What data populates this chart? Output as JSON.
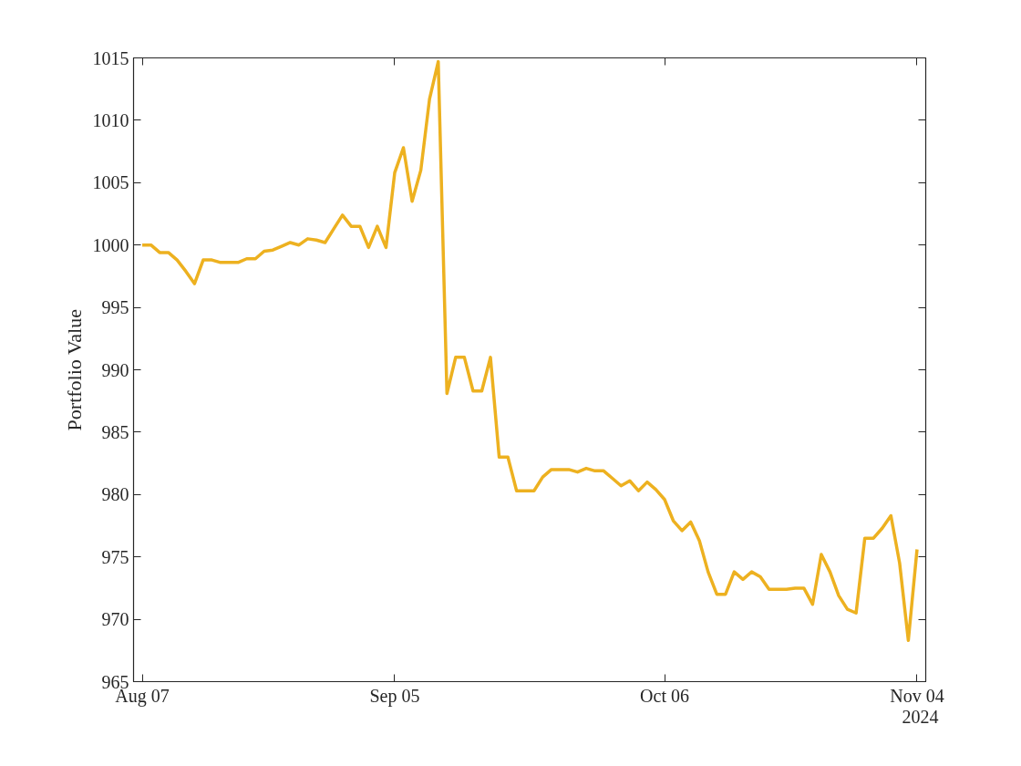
{
  "chart_data": {
    "type": "line",
    "ylabel": "Portfolio Value",
    "x": [
      "2024-08-07",
      "2024-08-08",
      "2024-08-09",
      "2024-08-10",
      "2024-08-11",
      "2024-08-12",
      "2024-08-13",
      "2024-08-14",
      "2024-08-15",
      "2024-08-16",
      "2024-08-17",
      "2024-08-18",
      "2024-08-19",
      "2024-08-20",
      "2024-08-21",
      "2024-08-22",
      "2024-08-23",
      "2024-08-24",
      "2024-08-25",
      "2024-08-26",
      "2024-08-27",
      "2024-08-28",
      "2024-08-29",
      "2024-08-30",
      "2024-08-31",
      "2024-09-01",
      "2024-09-02",
      "2024-09-03",
      "2024-09-04",
      "2024-09-05",
      "2024-09-06",
      "2024-09-07",
      "2024-09-08",
      "2024-09-09",
      "2024-09-10",
      "2024-09-11",
      "2024-09-12",
      "2024-09-13",
      "2024-09-14",
      "2024-09-15",
      "2024-09-16",
      "2024-09-17",
      "2024-09-18",
      "2024-09-19",
      "2024-09-20",
      "2024-09-21",
      "2024-09-22",
      "2024-09-23",
      "2024-09-24",
      "2024-09-25",
      "2024-09-26",
      "2024-09-27",
      "2024-09-28",
      "2024-09-29",
      "2024-09-30",
      "2024-10-01",
      "2024-10-02",
      "2024-10-03",
      "2024-10-04",
      "2024-10-05",
      "2024-10-06",
      "2024-10-07",
      "2024-10-08",
      "2024-10-09",
      "2024-10-10",
      "2024-10-11",
      "2024-10-12",
      "2024-10-13",
      "2024-10-14",
      "2024-10-15",
      "2024-10-16",
      "2024-10-17",
      "2024-10-18",
      "2024-10-19",
      "2024-10-20",
      "2024-10-21",
      "2024-10-22",
      "2024-10-23",
      "2024-10-24",
      "2024-10-25",
      "2024-10-26",
      "2024-10-27",
      "2024-10-28",
      "2024-10-29",
      "2024-10-30",
      "2024-10-31",
      "2024-11-01",
      "2024-11-02",
      "2024-11-03",
      "2024-11-04"
    ],
    "series": [
      {
        "color": "#edb120",
        "values": [
          1000.0,
          1000.0,
          999.4,
          999.4,
          998.8,
          997.9,
          996.9,
          998.8,
          998.8,
          998.6,
          998.6,
          998.6,
          998.9,
          998.9,
          999.5,
          999.6,
          999.9,
          1000.2,
          1000.0,
          1000.5,
          1000.4,
          1000.2,
          1001.3,
          1002.4,
          1001.5,
          1001.5,
          999.8,
          1001.5,
          999.8,
          1005.8,
          1007.8,
          1003.5,
          1006.0,
          1011.7,
          1014.7,
          988.1,
          991.0,
          991.0,
          988.3,
          988.3,
          991.0,
          983.0,
          983.0,
          980.3,
          980.3,
          980.3,
          981.4,
          982.0,
          982.0,
          982.0,
          981.8,
          982.1,
          981.9,
          981.9,
          981.3,
          980.7,
          981.1,
          980.3,
          981.0,
          980.4,
          979.6,
          977.9,
          977.1,
          977.8,
          976.3,
          973.8,
          972.0,
          972.0,
          973.8,
          973.2,
          973.8,
          973.4,
          972.4,
          972.4,
          972.4,
          972.5,
          972.5,
          971.2,
          975.2,
          973.8,
          971.9,
          970.8,
          970.5,
          976.5,
          976.5,
          977.3,
          978.3,
          974.5,
          968.3,
          975.6
        ]
      }
    ],
    "xlim": [
      "2024-08-06",
      "2024-11-05"
    ],
    "xticks": [
      {
        "value": "2024-08-07",
        "label": "Aug 07"
      },
      {
        "value": "2024-09-05",
        "label": "Sep 05"
      },
      {
        "value": "2024-10-06",
        "label": "Oct 06"
      },
      {
        "value": "2024-11-04",
        "label": "Nov 04"
      }
    ],
    "ylim": [
      965,
      1015
    ],
    "yticks": [
      965,
      970,
      975,
      980,
      985,
      990,
      995,
      1000,
      1005,
      1010,
      1015
    ],
    "grid": false,
    "marker": "none",
    "line_style": "solid",
    "annotations": [
      "2024"
    ]
  }
}
